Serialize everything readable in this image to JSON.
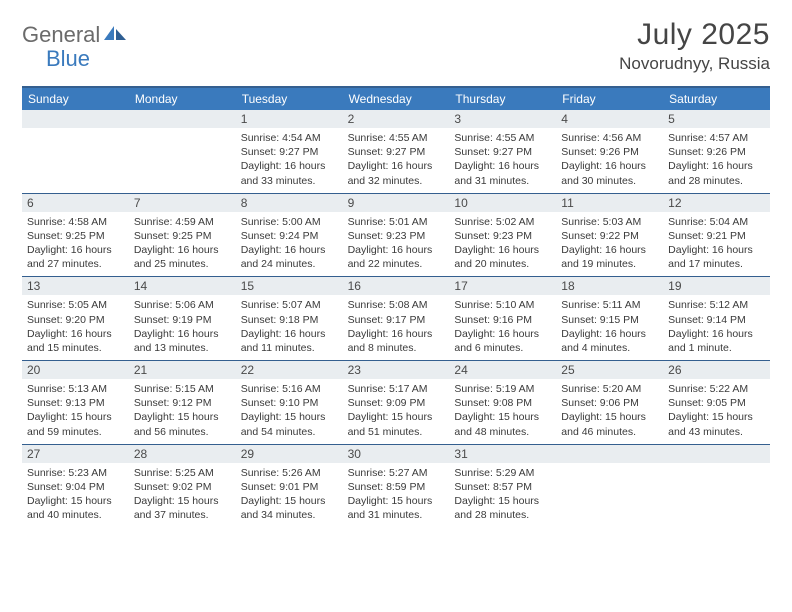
{
  "brand": {
    "word1": "General",
    "word2": "Blue"
  },
  "title": {
    "month": "July 2025",
    "location": "Novorudnyy, Russia"
  },
  "colors": {
    "header_bar": "#3a7abd",
    "rule": "#345f8f",
    "daynum_bg": "#e9edf0",
    "text": "#3a3a3a",
    "title_text": "#454545",
    "logo_gray": "#6b6b6b",
    "logo_blue": "#3a7abd",
    "white": "#ffffff"
  },
  "typography": {
    "title_fontsize": 30,
    "location_fontsize": 17,
    "dow_fontsize": 12,
    "daynum_fontsize": 12,
    "body_fontsize": 10.5
  },
  "daysOfWeek": [
    "Sunday",
    "Monday",
    "Tuesday",
    "Wednesday",
    "Thursday",
    "Friday",
    "Saturday"
  ],
  "weeks": [
    [
      {
        "n": "",
        "l1": "",
        "l2": "",
        "l3": "",
        "l4": ""
      },
      {
        "n": "",
        "l1": "",
        "l2": "",
        "l3": "",
        "l4": ""
      },
      {
        "n": "1",
        "l1": "Sunrise: 4:54 AM",
        "l2": "Sunset: 9:27 PM",
        "l3": "Daylight: 16 hours",
        "l4": "and 33 minutes."
      },
      {
        "n": "2",
        "l1": "Sunrise: 4:55 AM",
        "l2": "Sunset: 9:27 PM",
        "l3": "Daylight: 16 hours",
        "l4": "and 32 minutes."
      },
      {
        "n": "3",
        "l1": "Sunrise: 4:55 AM",
        "l2": "Sunset: 9:27 PM",
        "l3": "Daylight: 16 hours",
        "l4": "and 31 minutes."
      },
      {
        "n": "4",
        "l1": "Sunrise: 4:56 AM",
        "l2": "Sunset: 9:26 PM",
        "l3": "Daylight: 16 hours",
        "l4": "and 30 minutes."
      },
      {
        "n": "5",
        "l1": "Sunrise: 4:57 AM",
        "l2": "Sunset: 9:26 PM",
        "l3": "Daylight: 16 hours",
        "l4": "and 28 minutes."
      }
    ],
    [
      {
        "n": "6",
        "l1": "Sunrise: 4:58 AM",
        "l2": "Sunset: 9:25 PM",
        "l3": "Daylight: 16 hours",
        "l4": "and 27 minutes."
      },
      {
        "n": "7",
        "l1": "Sunrise: 4:59 AM",
        "l2": "Sunset: 9:25 PM",
        "l3": "Daylight: 16 hours",
        "l4": "and 25 minutes."
      },
      {
        "n": "8",
        "l1": "Sunrise: 5:00 AM",
        "l2": "Sunset: 9:24 PM",
        "l3": "Daylight: 16 hours",
        "l4": "and 24 minutes."
      },
      {
        "n": "9",
        "l1": "Sunrise: 5:01 AM",
        "l2": "Sunset: 9:23 PM",
        "l3": "Daylight: 16 hours",
        "l4": "and 22 minutes."
      },
      {
        "n": "10",
        "l1": "Sunrise: 5:02 AM",
        "l2": "Sunset: 9:23 PM",
        "l3": "Daylight: 16 hours",
        "l4": "and 20 minutes."
      },
      {
        "n": "11",
        "l1": "Sunrise: 5:03 AM",
        "l2": "Sunset: 9:22 PM",
        "l3": "Daylight: 16 hours",
        "l4": "and 19 minutes."
      },
      {
        "n": "12",
        "l1": "Sunrise: 5:04 AM",
        "l2": "Sunset: 9:21 PM",
        "l3": "Daylight: 16 hours",
        "l4": "and 17 minutes."
      }
    ],
    [
      {
        "n": "13",
        "l1": "Sunrise: 5:05 AM",
        "l2": "Sunset: 9:20 PM",
        "l3": "Daylight: 16 hours",
        "l4": "and 15 minutes."
      },
      {
        "n": "14",
        "l1": "Sunrise: 5:06 AM",
        "l2": "Sunset: 9:19 PM",
        "l3": "Daylight: 16 hours",
        "l4": "and 13 minutes."
      },
      {
        "n": "15",
        "l1": "Sunrise: 5:07 AM",
        "l2": "Sunset: 9:18 PM",
        "l3": "Daylight: 16 hours",
        "l4": "and 11 minutes."
      },
      {
        "n": "16",
        "l1": "Sunrise: 5:08 AM",
        "l2": "Sunset: 9:17 PM",
        "l3": "Daylight: 16 hours",
        "l4": "and 8 minutes."
      },
      {
        "n": "17",
        "l1": "Sunrise: 5:10 AM",
        "l2": "Sunset: 9:16 PM",
        "l3": "Daylight: 16 hours",
        "l4": "and 6 minutes."
      },
      {
        "n": "18",
        "l1": "Sunrise: 5:11 AM",
        "l2": "Sunset: 9:15 PM",
        "l3": "Daylight: 16 hours",
        "l4": "and 4 minutes."
      },
      {
        "n": "19",
        "l1": "Sunrise: 5:12 AM",
        "l2": "Sunset: 9:14 PM",
        "l3": "Daylight: 16 hours",
        "l4": "and 1 minute."
      }
    ],
    [
      {
        "n": "20",
        "l1": "Sunrise: 5:13 AM",
        "l2": "Sunset: 9:13 PM",
        "l3": "Daylight: 15 hours",
        "l4": "and 59 minutes."
      },
      {
        "n": "21",
        "l1": "Sunrise: 5:15 AM",
        "l2": "Sunset: 9:12 PM",
        "l3": "Daylight: 15 hours",
        "l4": "and 56 minutes."
      },
      {
        "n": "22",
        "l1": "Sunrise: 5:16 AM",
        "l2": "Sunset: 9:10 PM",
        "l3": "Daylight: 15 hours",
        "l4": "and 54 minutes."
      },
      {
        "n": "23",
        "l1": "Sunrise: 5:17 AM",
        "l2": "Sunset: 9:09 PM",
        "l3": "Daylight: 15 hours",
        "l4": "and 51 minutes."
      },
      {
        "n": "24",
        "l1": "Sunrise: 5:19 AM",
        "l2": "Sunset: 9:08 PM",
        "l3": "Daylight: 15 hours",
        "l4": "and 48 minutes."
      },
      {
        "n": "25",
        "l1": "Sunrise: 5:20 AM",
        "l2": "Sunset: 9:06 PM",
        "l3": "Daylight: 15 hours",
        "l4": "and 46 minutes."
      },
      {
        "n": "26",
        "l1": "Sunrise: 5:22 AM",
        "l2": "Sunset: 9:05 PM",
        "l3": "Daylight: 15 hours",
        "l4": "and 43 minutes."
      }
    ],
    [
      {
        "n": "27",
        "l1": "Sunrise: 5:23 AM",
        "l2": "Sunset: 9:04 PM",
        "l3": "Daylight: 15 hours",
        "l4": "and 40 minutes."
      },
      {
        "n": "28",
        "l1": "Sunrise: 5:25 AM",
        "l2": "Sunset: 9:02 PM",
        "l3": "Daylight: 15 hours",
        "l4": "and 37 minutes."
      },
      {
        "n": "29",
        "l1": "Sunrise: 5:26 AM",
        "l2": "Sunset: 9:01 PM",
        "l3": "Daylight: 15 hours",
        "l4": "and 34 minutes."
      },
      {
        "n": "30",
        "l1": "Sunrise: 5:27 AM",
        "l2": "Sunset: 8:59 PM",
        "l3": "Daylight: 15 hours",
        "l4": "and 31 minutes."
      },
      {
        "n": "31",
        "l1": "Sunrise: 5:29 AM",
        "l2": "Sunset: 8:57 PM",
        "l3": "Daylight: 15 hours",
        "l4": "and 28 minutes."
      },
      {
        "n": "",
        "l1": "",
        "l2": "",
        "l3": "",
        "l4": ""
      },
      {
        "n": "",
        "l1": "",
        "l2": "",
        "l3": "",
        "l4": ""
      }
    ]
  ]
}
